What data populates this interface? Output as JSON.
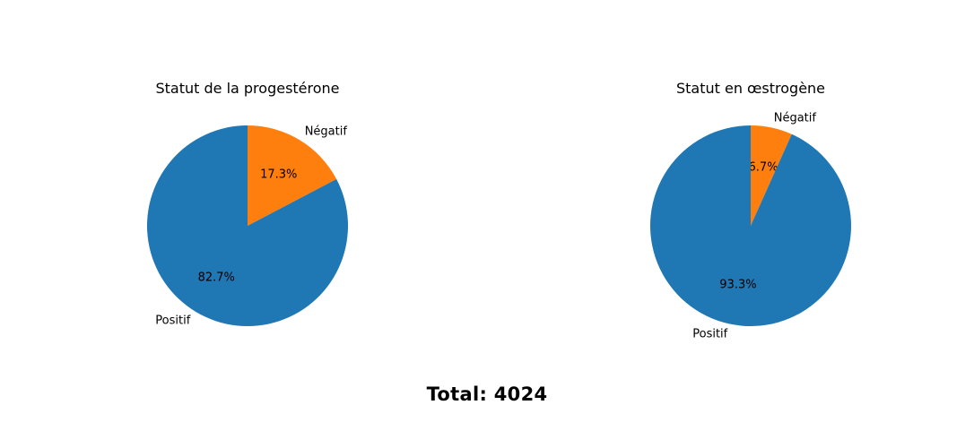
{
  "chart_data": [
    {
      "type": "pie",
      "title": "Statut de la progestérone",
      "slices": [
        {
          "label": "Négatif",
          "value": 17.3,
          "pct_label": "17.3%",
          "color": "#ff7f0e"
        },
        {
          "label": "Positif",
          "value": 82.7,
          "pct_label": "82.7%",
          "color": "#1f77b4"
        }
      ]
    },
    {
      "type": "pie",
      "title": "Statut en œstrogène",
      "slices": [
        {
          "label": "Négatif",
          "value": 6.7,
          "pct_label": "6.7%",
          "color": "#ff7f0e"
        },
        {
          "label": "Positif",
          "value": 93.3,
          "pct_label": "93.3%",
          "color": "#1f77b4"
        }
      ]
    }
  ],
  "footer": {
    "total_text": "Total: 4024"
  }
}
